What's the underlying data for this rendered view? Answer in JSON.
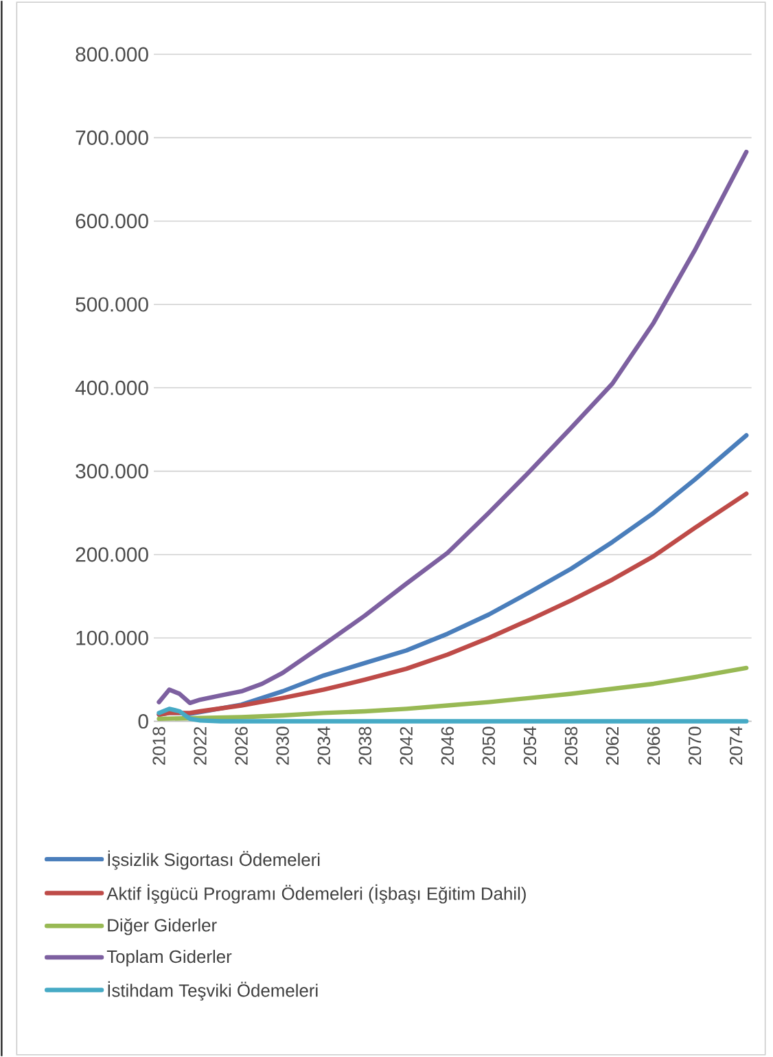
{
  "chart_data": {
    "type": "line",
    "xlim": [
      2017.5,
      2075.5
    ],
    "ylim": [
      0,
      800000
    ],
    "xticks": [
      2018,
      2022,
      2026,
      2030,
      2034,
      2038,
      2042,
      2046,
      2050,
      2054,
      2058,
      2062,
      2066,
      2070,
      2074
    ],
    "yticks": [
      {
        "value": 0,
        "label": "0"
      },
      {
        "value": 100000,
        "label": "100.000"
      },
      {
        "value": 200000,
        "label": "200.000"
      },
      {
        "value": 300000,
        "label": "300.000"
      },
      {
        "value": 400000,
        "label": "400.000"
      },
      {
        "value": 500000,
        "label": "500.000"
      },
      {
        "value": 600000,
        "label": "600.000"
      },
      {
        "value": 700000,
        "label": "700.000"
      },
      {
        "value": 800000,
        "label": "800.000"
      }
    ],
    "grid": "y",
    "legend": "bottom",
    "marker": "none",
    "line_style": "solid",
    "series": [
      {
        "name": "İşsizlik Sigortası Ödemeleri",
        "color": "#4a7ebb",
        "x": [
          2018,
          2019,
          2020,
          2021,
          2022,
          2026,
          2030,
          2034,
          2038,
          2042,
          2046,
          2050,
          2054,
          2058,
          2062,
          2066,
          2070,
          2075
        ],
        "values": [
          8000,
          10000,
          10000,
          9000,
          11000,
          20000,
          36000,
          55000,
          70000,
          85000,
          105000,
          128000,
          155000,
          183000,
          215000,
          250000,
          290000,
          343000
        ]
      },
      {
        "name": "Aktif İşgücü Programı Ödemeleri (İşbaşı Eğitim Dahil)",
        "color": "#be4b48",
        "x": [
          2018,
          2019,
          2020,
          2021,
          2022,
          2026,
          2030,
          2034,
          2038,
          2042,
          2046,
          2050,
          2054,
          2058,
          2062,
          2066,
          2070,
          2075
        ],
        "values": [
          8000,
          10000,
          10000,
          10000,
          12000,
          19000,
          28000,
          38000,
          50000,
          63000,
          80000,
          100000,
          122000,
          145000,
          170000,
          198000,
          232000,
          273000
        ]
      },
      {
        "name": "Diğer Giderler",
        "color": "#98b954",
        "x": [
          2018,
          2022,
          2026,
          2030,
          2034,
          2038,
          2042,
          2046,
          2050,
          2054,
          2058,
          2062,
          2066,
          2070,
          2075
        ],
        "values": [
          3000,
          4000,
          5000,
          7000,
          10000,
          12000,
          15000,
          19000,
          23000,
          28000,
          33000,
          39000,
          45000,
          53000,
          64000
        ]
      },
      {
        "name": "Toplam Giderler",
        "color": "#7d60a0",
        "x": [
          2018,
          2019,
          2020,
          2021,
          2022,
          2024,
          2026,
          2028,
          2030,
          2034,
          2038,
          2042,
          2046,
          2050,
          2054,
          2058,
          2062,
          2066,
          2070,
          2075
        ],
        "values": [
          23000,
          38000,
          33000,
          22000,
          26000,
          31000,
          36000,
          45000,
          58000,
          92000,
          127000,
          165000,
          202000,
          250000,
          300000,
          352000,
          405000,
          478000,
          565000,
          683000
        ]
      },
      {
        "name": "İstihdam Teşviki Ödemeleri",
        "color": "#46aac5",
        "x": [
          2018,
          2019,
          2020,
          2021,
          2022,
          2024,
          2030,
          2040,
          2050,
          2060,
          2075
        ],
        "values": [
          10000,
          15000,
          12000,
          3000,
          1000,
          0,
          0,
          0,
          0,
          0,
          0
        ]
      }
    ]
  }
}
